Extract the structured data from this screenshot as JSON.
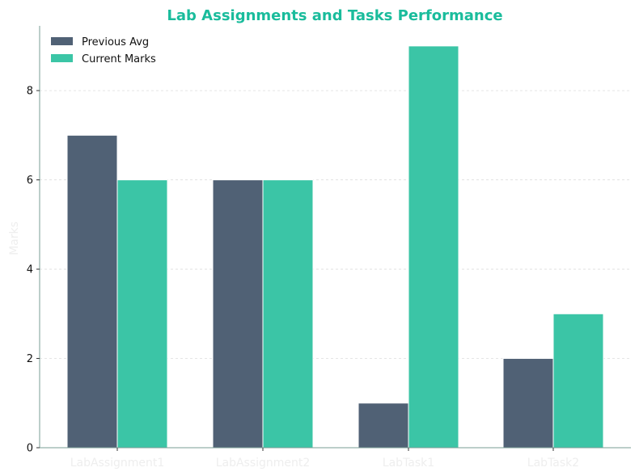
{
  "chart_data": {
    "type": "bar",
    "title": "Lab Assignments and Tasks Performance",
    "xlabel": "",
    "ylabel": "Marks",
    "categories": [
      "LabAssignment1",
      "LabAssignment2",
      "LabTask1",
      "LabTask2"
    ],
    "series": [
      {
        "name": "Previous Avg",
        "values": [
          7,
          6,
          1,
          2
        ],
        "color": "#506175"
      },
      {
        "name": "Current Marks",
        "values": [
          6,
          6,
          9,
          3
        ],
        "color": "#3bc5a6"
      }
    ],
    "ylim": [
      0,
      9.45
    ],
    "yticks": [
      0,
      2,
      4,
      6,
      8
    ],
    "grid": "y-dashed",
    "legend_position": "top-left",
    "colors": {
      "title": "#1abc9c",
      "category_labels": "#eeeeee",
      "axis_title": "#eeeeee",
      "axis_line": "#7a9e95",
      "grid": "#dddddd"
    }
  }
}
